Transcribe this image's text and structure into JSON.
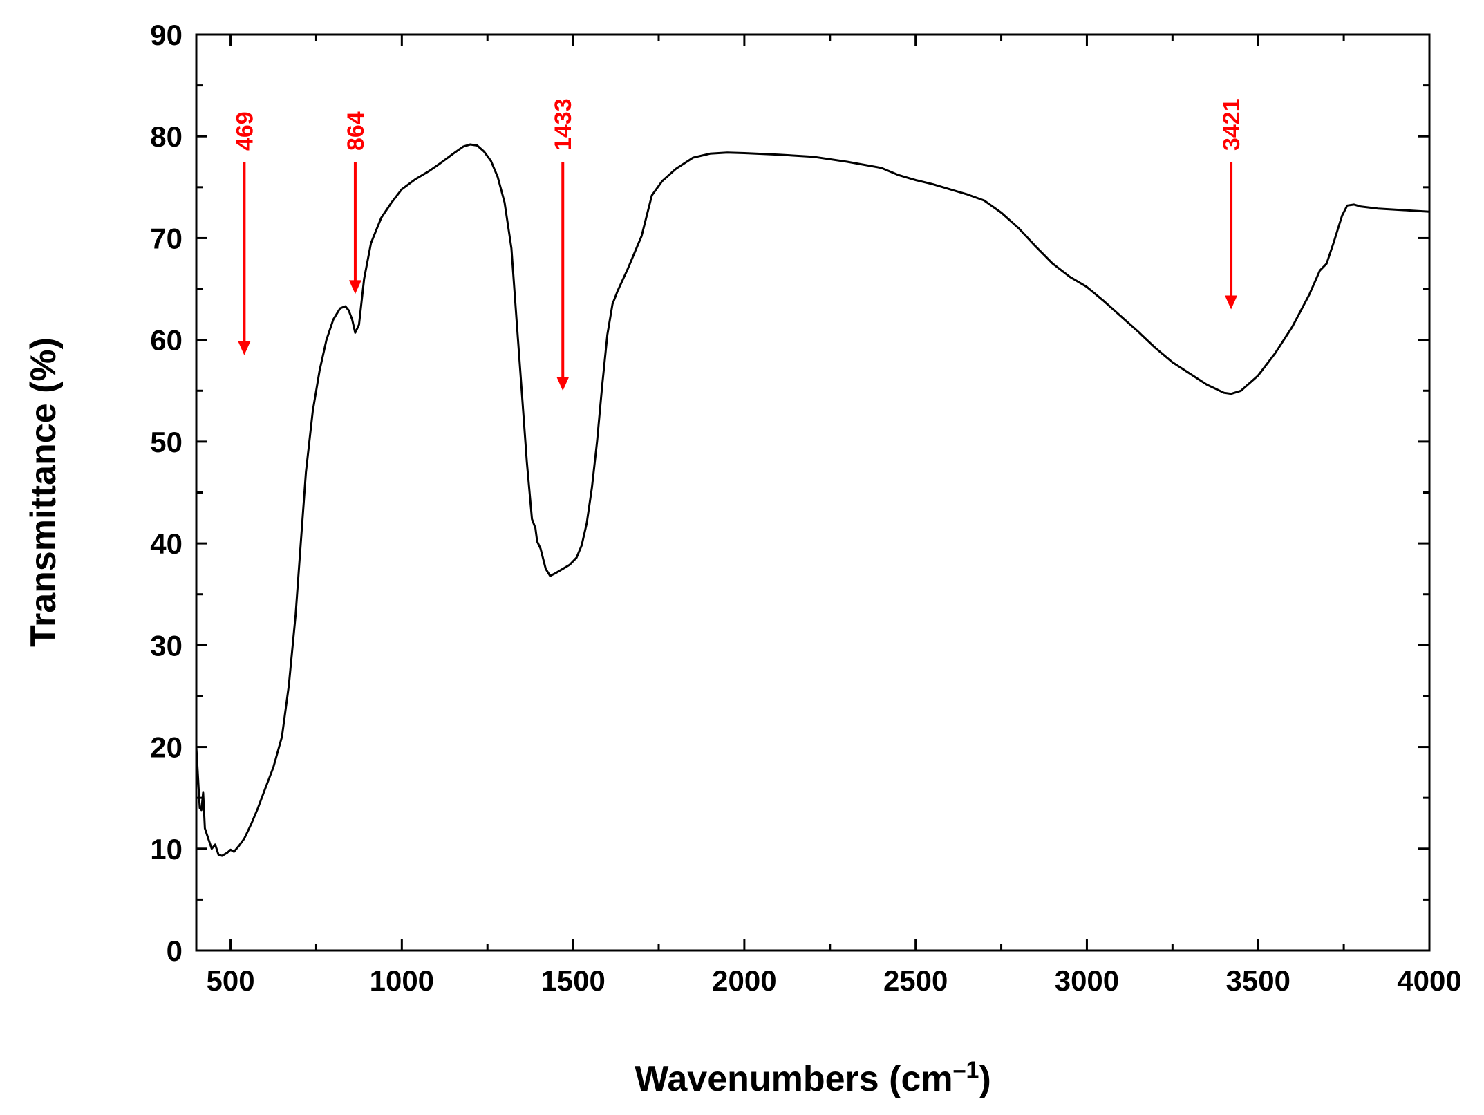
{
  "chart_data": {
    "type": "line",
    "title": "",
    "xlabel": "Wavenumbers (cm",
    "xlabel_superscript": "–1",
    "xlabel_suffix": ")",
    "ylabel": "Transmittance (%)",
    "xlim": [
      400,
      4000
    ],
    "ylim": [
      0,
      90
    ],
    "x_ticks": [
      500,
      1000,
      1500,
      2000,
      2500,
      3000,
      3500,
      4000
    ],
    "y_ticks": [
      0,
      10,
      20,
      30,
      40,
      50,
      60,
      70,
      80,
      90
    ],
    "grid": false,
    "legend": false,
    "colors": {
      "line": "#000000",
      "annotation": "#ff0000"
    },
    "series": [
      {
        "points": [
          [
            400,
            20
          ],
          [
            405,
            17
          ],
          [
            410,
            14
          ],
          [
            415,
            13.8
          ],
          [
            420,
            15.5
          ],
          [
            425,
            12
          ],
          [
            435,
            11
          ],
          [
            445,
            10
          ],
          [
            455,
            10.4
          ],
          [
            465,
            9.4
          ],
          [
            475,
            9.3
          ],
          [
            490,
            9.6
          ],
          [
            500,
            9.9
          ],
          [
            510,
            9.7
          ],
          [
            525,
            10.3
          ],
          [
            540,
            11
          ],
          [
            560,
            12.4
          ],
          [
            580,
            14
          ],
          [
            600,
            15.8
          ],
          [
            625,
            18
          ],
          [
            650,
            21
          ],
          [
            670,
            26
          ],
          [
            690,
            33
          ],
          [
            705,
            40
          ],
          [
            720,
            47
          ],
          [
            740,
            53
          ],
          [
            760,
            57
          ],
          [
            780,
            60
          ],
          [
            800,
            62
          ],
          [
            820,
            63.1
          ],
          [
            835,
            63.3
          ],
          [
            845,
            62.9
          ],
          [
            855,
            62
          ],
          [
            864,
            60.7
          ],
          [
            875,
            61.5
          ],
          [
            890,
            66
          ],
          [
            910,
            69.5
          ],
          [
            940,
            72
          ],
          [
            970,
            73.5
          ],
          [
            1000,
            74.8
          ],
          [
            1040,
            75.8
          ],
          [
            1080,
            76.6
          ],
          [
            1110,
            77.3
          ],
          [
            1150,
            78.3
          ],
          [
            1180,
            79
          ],
          [
            1200,
            79.2
          ],
          [
            1220,
            79.1
          ],
          [
            1240,
            78.5
          ],
          [
            1260,
            77.6
          ],
          [
            1280,
            76
          ],
          [
            1300,
            73.5
          ],
          [
            1320,
            69
          ],
          [
            1335,
            62
          ],
          [
            1350,
            55
          ],
          [
            1365,
            48
          ],
          [
            1380,
            42.4
          ],
          [
            1390,
            41.5
          ],
          [
            1395,
            40.2
          ],
          [
            1405,
            39.5
          ],
          [
            1420,
            37.5
          ],
          [
            1433,
            36.8
          ],
          [
            1450,
            37.1
          ],
          [
            1470,
            37.5
          ],
          [
            1490,
            37.9
          ],
          [
            1510,
            38.6
          ],
          [
            1525,
            39.8
          ],
          [
            1540,
            42
          ],
          [
            1555,
            45.5
          ],
          [
            1570,
            50
          ],
          [
            1585,
            55.5
          ],
          [
            1600,
            60.5
          ],
          [
            1615,
            63.5
          ],
          [
            1630,
            64.8
          ],
          [
            1660,
            67
          ],
          [
            1700,
            70.2
          ],
          [
            1730,
            74.2
          ],
          [
            1760,
            75.6
          ],
          [
            1800,
            76.8
          ],
          [
            1850,
            77.9
          ],
          [
            1900,
            78.3
          ],
          [
            1950,
            78.4
          ],
          [
            2000,
            78.35
          ],
          [
            2100,
            78.2
          ],
          [
            2200,
            78
          ],
          [
            2300,
            77.5
          ],
          [
            2400,
            76.9
          ],
          [
            2450,
            76.2
          ],
          [
            2500,
            75.7
          ],
          [
            2550,
            75.3
          ],
          [
            2600,
            74.8
          ],
          [
            2650,
            74.3
          ],
          [
            2700,
            73.7
          ],
          [
            2750,
            72.5
          ],
          [
            2800,
            71
          ],
          [
            2850,
            69.2
          ],
          [
            2900,
            67.5
          ],
          [
            2950,
            66.2
          ],
          [
            3000,
            65.2
          ],
          [
            3050,
            63.8
          ],
          [
            3100,
            62.3
          ],
          [
            3150,
            60.8
          ],
          [
            3200,
            59.2
          ],
          [
            3250,
            57.8
          ],
          [
            3300,
            56.7
          ],
          [
            3350,
            55.6
          ],
          [
            3400,
            54.8
          ],
          [
            3421,
            54.7
          ],
          [
            3450,
            55
          ],
          [
            3500,
            56.5
          ],
          [
            3550,
            58.7
          ],
          [
            3600,
            61.3
          ],
          [
            3650,
            64.5
          ],
          [
            3680,
            66.8
          ],
          [
            3700,
            67.5
          ],
          [
            3720,
            69.5
          ],
          [
            3745,
            72.2
          ],
          [
            3760,
            73.2
          ],
          [
            3780,
            73.3
          ],
          [
            3800,
            73.1
          ],
          [
            3850,
            72.9
          ],
          [
            3900,
            72.8
          ],
          [
            3950,
            72.7
          ],
          [
            4000,
            72.6
          ]
        ]
      }
    ],
    "annotations": [
      {
        "label": "469",
        "x": 540,
        "y_top": 77.5,
        "y_tip": 58.5
      },
      {
        "label": "864",
        "x": 864,
        "y_top": 77.5,
        "y_tip": 64.5
      },
      {
        "label": "1433",
        "x": 1470,
        "y_top": 77.5,
        "y_tip": 55
      },
      {
        "label": "3421",
        "x": 3421,
        "y_top": 77.5,
        "y_tip": 63
      }
    ]
  }
}
